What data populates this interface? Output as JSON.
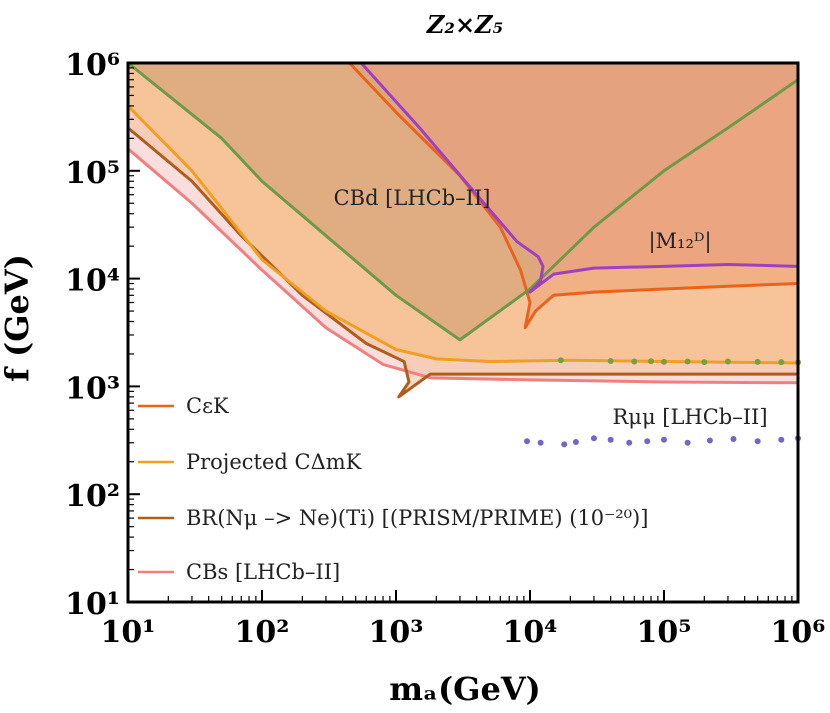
{
  "chart_data": {
    "type": "area",
    "title": "Z₂×Z₅",
    "xlabel": "mₐ(GeV)",
    "ylabel": "f (GeV)",
    "xscale": "log",
    "yscale": "log",
    "xlim": [
      10,
      1000000
    ],
    "ylim": [
      10,
      1000000
    ],
    "grid": false,
    "legend_position": "bottom-left",
    "x_ticks": [
      {
        "value": 10,
        "label": "10¹"
      },
      {
        "value": 100,
        "label": "10²"
      },
      {
        "value": 1000,
        "label": "10³"
      },
      {
        "value": 10000,
        "label": "10⁴"
      },
      {
        "value": 100000,
        "label": "10⁵"
      },
      {
        "value": 1000000,
        "label": "10⁶"
      }
    ],
    "y_ticks": [
      {
        "value": 10,
        "label": "10¹"
      },
      {
        "value": 100,
        "label": "10²"
      },
      {
        "value": 1000,
        "label": "10³"
      },
      {
        "value": 10000,
        "label": "10⁴"
      },
      {
        "value": 100000,
        "label": "10⁵"
      },
      {
        "value": 1000000,
        "label": "10⁶"
      }
    ],
    "series": [
      {
        "name": "C_{ε_K}",
        "legend_label": "CεK",
        "color": "#e8641e",
        "fill": "#f0ae80",
        "x": [
          450,
          1000,
          3000,
          6000,
          8500,
          10000,
          9200,
          11000,
          15000,
          30000,
          100000,
          300000,
          1000000
        ],
        "y": [
          1000000,
          350000,
          90000,
          30000,
          12000,
          6000,
          3500,
          5000,
          7000,
          7500,
          8000,
          8500,
          9000
        ]
      },
      {
        "name": "Projected C_{Δm_K}",
        "legend_label": "Projected CΔmK",
        "color": "#f0a020",
        "fill": "#f7c090",
        "x": [
          10,
          30,
          100,
          300,
          1000,
          2000,
          5000,
          20000,
          100000,
          1000000
        ],
        "y": [
          400000,
          100000,
          15000,
          5000,
          2200,
          1800,
          1700,
          1750,
          1700,
          1650
        ]
      },
      {
        "name": "BR(Nμ -> Ne)(Ti) [(PRISM/PRIME) (10^{-20})]",
        "legend_label": "BR(Nμ –> Ne)(Ti) [(PRISM/PRIME) (10⁻²⁰)]",
        "color": "#b05c1c",
        "fill": "#f3c09a",
        "x": [
          10,
          30,
          70,
          200,
          600,
          1150,
          1250,
          1050,
          1800,
          5000,
          100000,
          1000000
        ],
        "y": [
          250000,
          80000,
          25000,
          7000,
          2500,
          1700,
          1100,
          800,
          1300,
          1300,
          1300,
          1300
        ]
      },
      {
        "name": "C_{B_s} [LHCb-II]",
        "legend_label": "CBs [LHCb–II]",
        "color": "#f08080",
        "fill": "#fadada",
        "x": [
          10,
          30,
          100,
          300,
          800,
          1800,
          10000,
          100000,
          1000000
        ],
        "y": [
          160000,
          50000,
          12000,
          3500,
          1600,
          1200,
          1150,
          1100,
          1080
        ]
      },
      {
        "name": "C_{B_d} [LHCb-II]",
        "annotation": "CBd [LHCb–II]",
        "color": "#6e9a48",
        "fill": "#d8a87a",
        "x": [
          10,
          20,
          50,
          100,
          300,
          1000,
          3000,
          10000,
          30000,
          100000,
          300000,
          1000000
        ],
        "y": [
          1000000,
          500000,
          200000,
          80000,
          25000,
          7000,
          2700,
          8000,
          30000,
          100000,
          250000,
          700000
        ]
      },
      {
        "name": "|M_{12}^D|",
        "annotation": "|M₁₂ᴰ|",
        "color": "#a040c0",
        "fill": "#e8a080",
        "x": [
          550,
          1500,
          4000,
          8000,
          11500,
          12500,
          12000,
          10000,
          15000,
          30000,
          100000,
          300000,
          1000000
        ],
        "y": [
          1000000,
          250000,
          60000,
          22000,
          16000,
          13000,
          9500,
          7500,
          11000,
          12500,
          13000,
          13500,
          13000
        ]
      },
      {
        "name": "R_{μμ} [LHCb-II]",
        "annotation": "Rμμ [LHCb–II]",
        "type": "scatter",
        "color": "#7466c8",
        "x": [
          9500,
          12000,
          18000,
          22000,
          30000,
          40000,
          55000,
          75000,
          100000,
          150000,
          220000,
          330000,
          500000,
          750000,
          1000000
        ],
        "y": [
          310,
          300,
          290,
          305,
          330,
          320,
          300,
          310,
          320,
          300,
          315,
          325,
          310,
          320,
          330
        ]
      },
      {
        "name": "Projected C_{Δm_K} band",
        "type": "scatter",
        "color": "#78a040",
        "x": [
          17000,
          40000,
          60000,
          80000,
          100000,
          150000,
          200000,
          300000,
          500000,
          750000,
          1000000
        ],
        "y": [
          1750,
          1720,
          1700,
          1710,
          1690,
          1700,
          1680,
          1700,
          1690,
          1680,
          1670
        ]
      }
    ]
  }
}
